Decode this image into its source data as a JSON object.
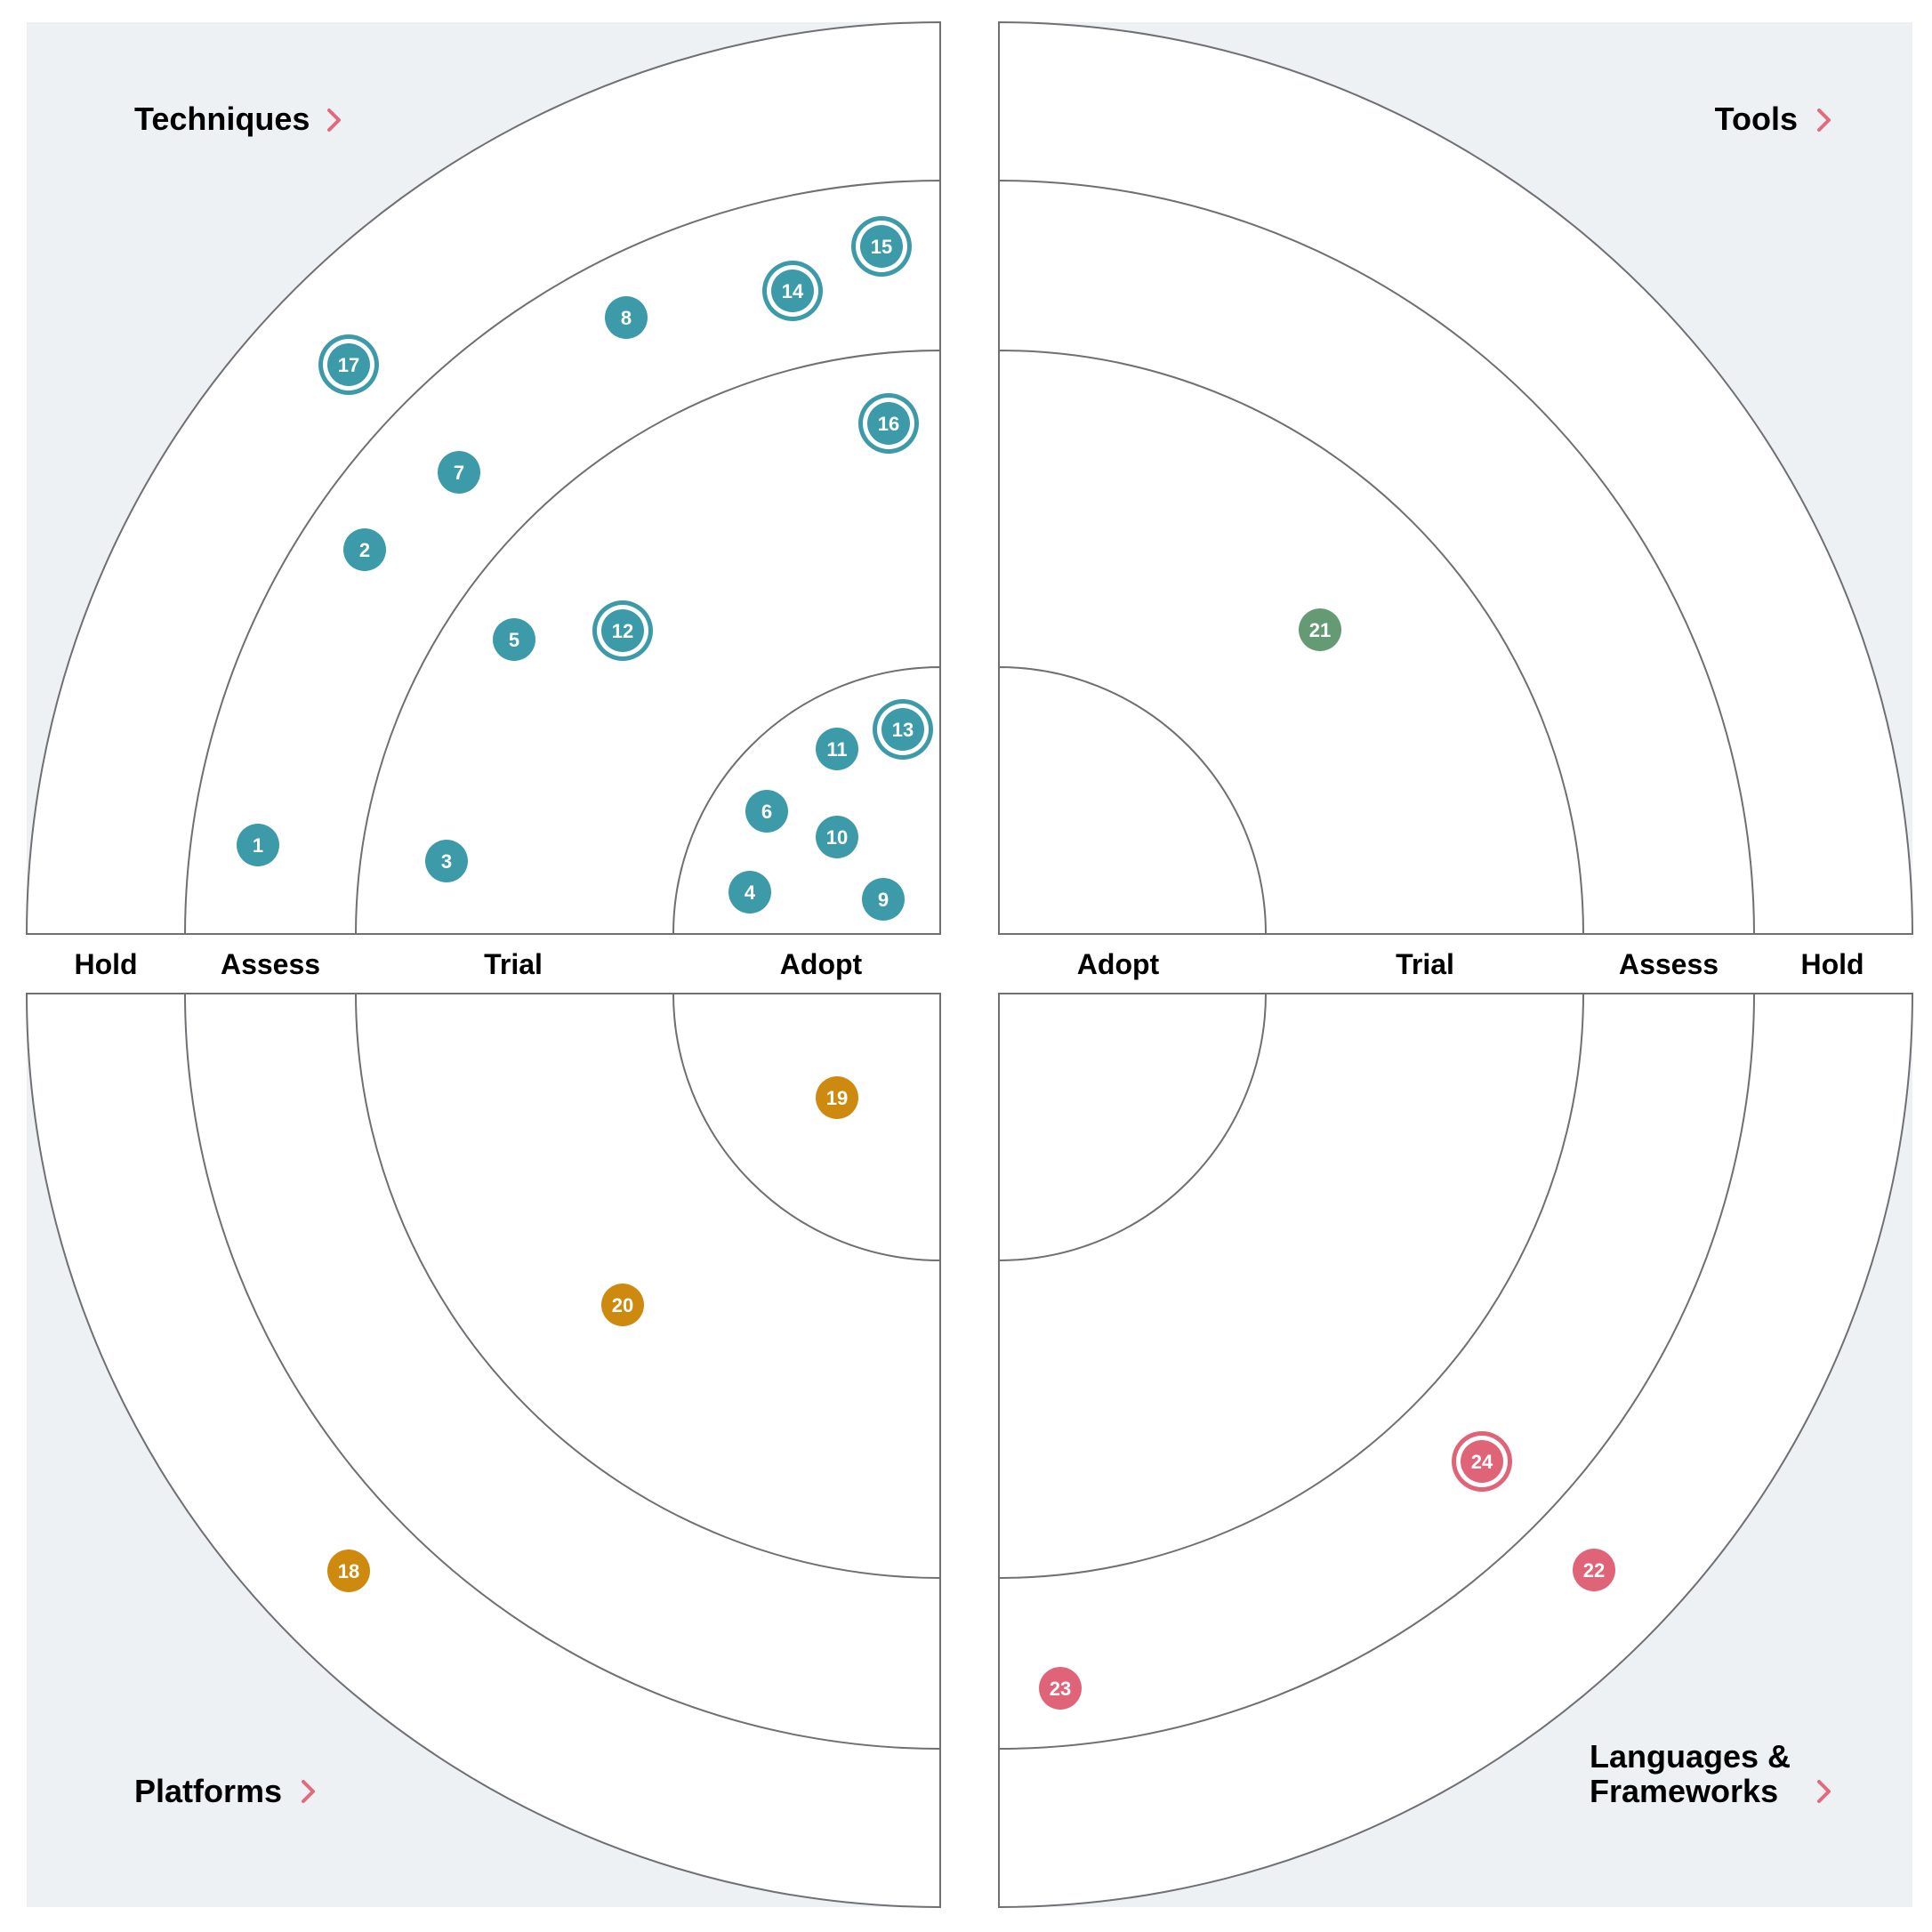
{
  "quadrants": {
    "techniques": {
      "title": "Techniques",
      "color": "#3c9aa9"
    },
    "tools": {
      "title": "Tools",
      "color": "#659b74"
    },
    "platforms": {
      "title": "Platforms",
      "color": "#cd8a0f"
    },
    "languages": {
      "title": "Languages &",
      "title_line2": "Frameworks",
      "color": "#e06478"
    }
  },
  "ring_labels": {
    "left": [
      "Hold",
      "Assess",
      "Trial",
      "Adopt"
    ],
    "right": [
      "Adopt",
      "Trial",
      "Assess",
      "Hold"
    ]
  },
  "colors": {
    "background": "#edf1f3",
    "ring_line": "#6f6f74",
    "chevron": "#e16a7c"
  },
  "blips": [
    {
      "number": "1",
      "quadrant": "techniques",
      "ring": "Assess",
      "new": false
    },
    {
      "number": "2",
      "quadrant": "techniques",
      "ring": "Assess",
      "new": false
    },
    {
      "number": "3",
      "quadrant": "techniques",
      "ring": "Trial",
      "new": false
    },
    {
      "number": "4",
      "quadrant": "techniques",
      "ring": "Adopt",
      "new": false
    },
    {
      "number": "5",
      "quadrant": "techniques",
      "ring": "Trial",
      "new": false
    },
    {
      "number": "6",
      "quadrant": "techniques",
      "ring": "Adopt",
      "new": false
    },
    {
      "number": "7",
      "quadrant": "techniques",
      "ring": "Assess",
      "new": false
    },
    {
      "number": "8",
      "quadrant": "techniques",
      "ring": "Assess",
      "new": false
    },
    {
      "number": "9",
      "quadrant": "techniques",
      "ring": "Adopt",
      "new": false
    },
    {
      "number": "10",
      "quadrant": "techniques",
      "ring": "Adopt",
      "new": false
    },
    {
      "number": "11",
      "quadrant": "techniques",
      "ring": "Adopt",
      "new": false
    },
    {
      "number": "12",
      "quadrant": "techniques",
      "ring": "Trial",
      "new": true
    },
    {
      "number": "13",
      "quadrant": "techniques",
      "ring": "Adopt",
      "new": true
    },
    {
      "number": "14",
      "quadrant": "techniques",
      "ring": "Assess",
      "new": true
    },
    {
      "number": "15",
      "quadrant": "techniques",
      "ring": "Assess",
      "new": true
    },
    {
      "number": "16",
      "quadrant": "techniques",
      "ring": "Trial",
      "new": true
    },
    {
      "number": "17",
      "quadrant": "techniques",
      "ring": "Hold",
      "new": true
    },
    {
      "number": "18",
      "quadrant": "platforms",
      "ring": "Hold",
      "new": false
    },
    {
      "number": "19",
      "quadrant": "platforms",
      "ring": "Adopt",
      "new": false
    },
    {
      "number": "20",
      "quadrant": "platforms",
      "ring": "Trial",
      "new": false
    },
    {
      "number": "21",
      "quadrant": "tools",
      "ring": "Trial",
      "new": false
    },
    {
      "number": "22",
      "quadrant": "languages",
      "ring": "Hold",
      "new": false
    },
    {
      "number": "23",
      "quadrant": "languages",
      "ring": "Assess",
      "new": false
    },
    {
      "number": "24",
      "quadrant": "languages",
      "ring": "Assess",
      "new": true
    }
  ]
}
